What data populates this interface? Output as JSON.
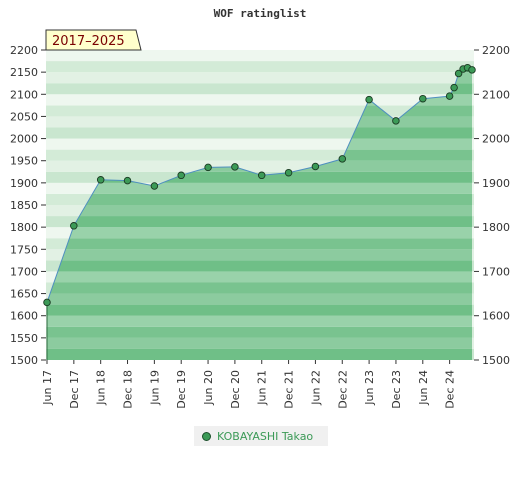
{
  "chart_data": {
    "type": "area",
    "title": "WOF ratinglist",
    "range_label": "2017–2025",
    "ylim": [
      1500,
      2200
    ],
    "y_ticks": [
      1500,
      1550,
      1600,
      1650,
      1700,
      1750,
      1800,
      1850,
      1900,
      1950,
      2000,
      2050,
      2100,
      2150,
      2200
    ],
    "y_ticks_right": [
      1500,
      1600,
      1700,
      1800,
      1900,
      2000,
      2100,
      2200
    ],
    "x_tick_labels": [
      "Jun 17",
      "Dec 17",
      "Jun 18",
      "Dec 18",
      "Jun 19",
      "Dec 19",
      "Jun 20",
      "Dec 20",
      "Jun 21",
      "Dec 21",
      "Jun 22",
      "Dec 22",
      "Jun 23",
      "Dec 23",
      "Jun 24",
      "Dec 24"
    ],
    "series": [
      {
        "name": "KOBAYASHI Takao",
        "color": "#3c9a57",
        "points": [
          {
            "x": "2017-06",
            "y": 1630
          },
          {
            "x": "2017-12",
            "y": 1803
          },
          {
            "x": "2018-06",
            "y": 1907
          },
          {
            "x": "2018-12",
            "y": 1905
          },
          {
            "x": "2019-06",
            "y": 1893
          },
          {
            "x": "2019-12",
            "y": 1917
          },
          {
            "x": "2020-06",
            "y": 1935
          },
          {
            "x": "2020-12",
            "y": 1936
          },
          {
            "x": "2021-06",
            "y": 1917
          },
          {
            "x": "2021-12",
            "y": 1923
          },
          {
            "x": "2022-06",
            "y": 1937
          },
          {
            "x": "2022-12",
            "y": 1954
          },
          {
            "x": "2023-06",
            "y": 2088
          },
          {
            "x": "2023-12",
            "y": 2040
          },
          {
            "x": "2024-06",
            "y": 2090
          },
          {
            "x": "2024-12",
            "y": 2096
          },
          {
            "x": "2025-01",
            "y": 2115
          },
          {
            "x": "2025-02",
            "y": 2147
          },
          {
            "x": "2025-03",
            "y": 2157
          },
          {
            "x": "2025-04",
            "y": 2160
          },
          {
            "x": "2025-05",
            "y": 2155
          }
        ]
      }
    ],
    "grid": true,
    "legend_position": "bottom"
  }
}
